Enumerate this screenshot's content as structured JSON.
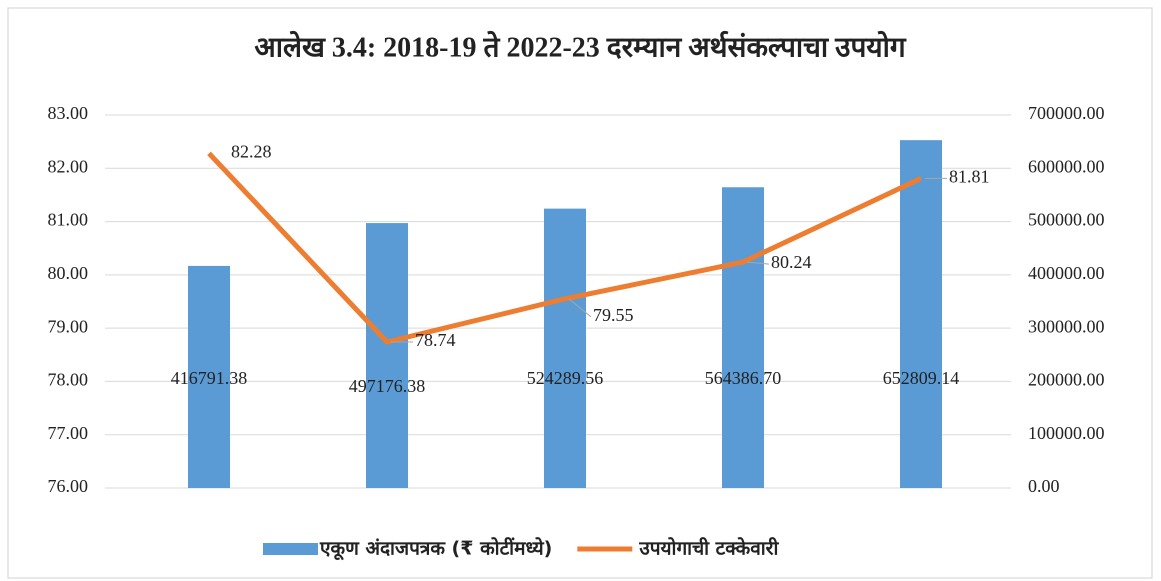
{
  "chart_data": {
    "type": "bar-line",
    "title": "आलेख 3.4: 2018-19 ते 2022-23 दरम्यान अर्थसंकल्पाचा उपयोग",
    "categories": [
      null,
      null,
      null,
      null,
      null
    ],
    "series": [
      {
        "name": "एकूण अंदाजपत्रक (₹ कोटींमध्ये)",
        "type": "bar",
        "axis": "y2",
        "color": "#5b9bd5",
        "values": [
          416791.38,
          497176.38,
          524289.56,
          564386.7,
          652809.14
        ],
        "value_labels": [
          "416791.38",
          "497176.38",
          "524289.56",
          "564386.70",
          "652809.14"
        ]
      },
      {
        "name": "उपयोगाची टक्केवारी",
        "type": "line",
        "axis": "y",
        "color": "#ed7d31",
        "values": [
          82.28,
          78.74,
          79.55,
          80.24,
          81.81
        ]
      }
    ],
    "ylim": [
      76,
      83
    ],
    "yticks": [
      {
        "value": 76,
        "label": "76.00"
      },
      {
        "value": 77,
        "label": "77.00"
      },
      {
        "value": 78,
        "label": "78.00"
      },
      {
        "value": 79,
        "label": "79.00"
      },
      {
        "value": 80,
        "label": "80.00"
      },
      {
        "value": 81,
        "label": "81.00"
      },
      {
        "value": 82,
        "label": "82.00"
      },
      {
        "value": 83,
        "label": "83.00"
      }
    ],
    "y2lim": [
      0,
      700000
    ],
    "y2ticks": [
      {
        "value": 0,
        "label": "0.00"
      },
      {
        "value": 100000,
        "label": "100000.00"
      },
      {
        "value": 200000,
        "label": "200000.00"
      },
      {
        "value": 300000,
        "label": "300000.00"
      },
      {
        "value": 400000,
        "label": "400000.00"
      },
      {
        "value": 500000,
        "label": "500000.00"
      },
      {
        "value": 600000,
        "label": "600000.00"
      },
      {
        "value": 700000,
        "label": "700000.00"
      }
    ],
    "grid": true,
    "legend": "bottom"
  }
}
